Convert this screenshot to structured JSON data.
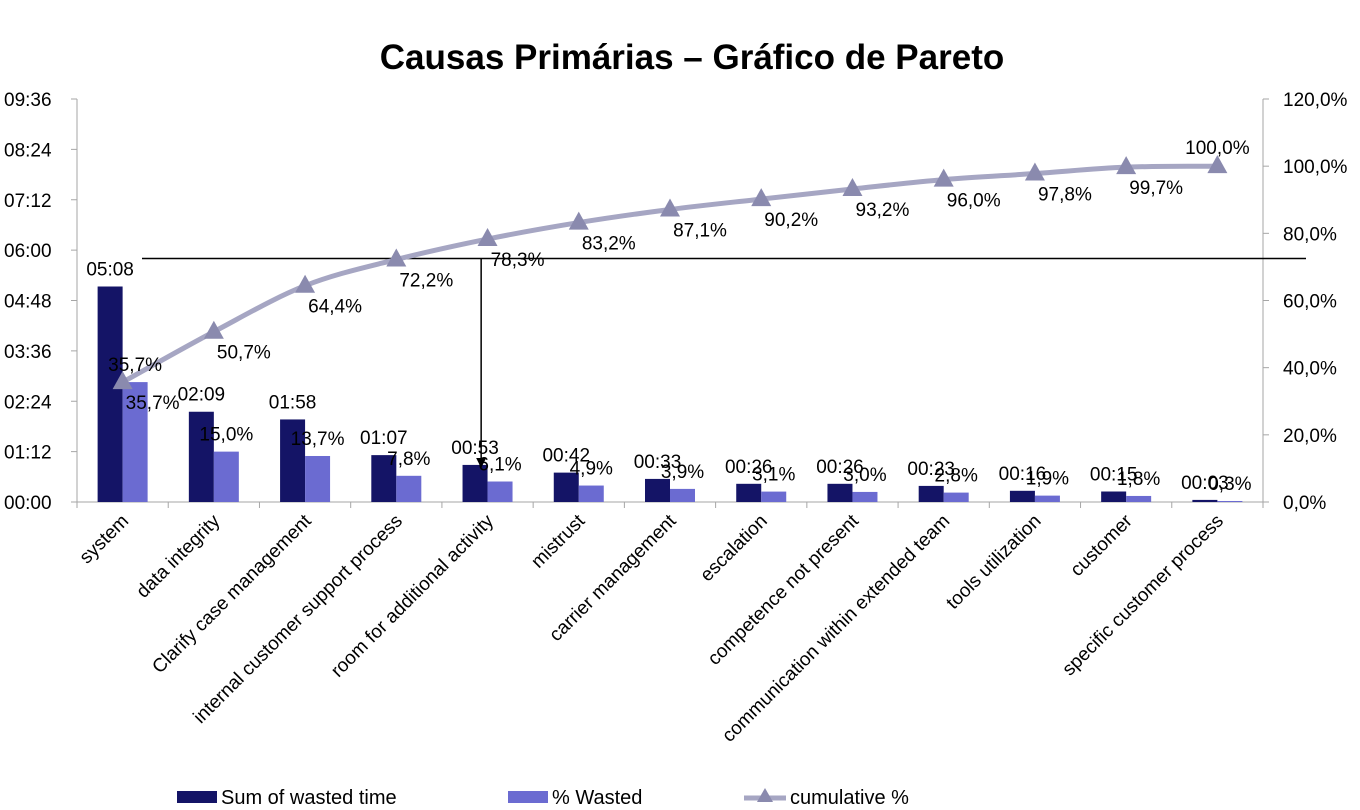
{
  "chart_data": {
    "type": "bar",
    "title": "Causas Primárias – Gráfico de Pareto",
    "categories": [
      "system",
      "data integrity",
      "Clarify case management",
      "internal customer support process",
      "room for additional activity",
      "mistrust",
      "carrier management",
      "escalation",
      "competence not present",
      "communication within extended team",
      "tools utilization",
      "customer",
      "specific customer process"
    ],
    "series": [
      {
        "name": "Sum of wasted time",
        "type": "bar",
        "axis": "left",
        "color": "#141466",
        "values_minutes": [
          308,
          129,
          118,
          67,
          53,
          42,
          33,
          26,
          26,
          23,
          16,
          15,
          3
        ],
        "labels": [
          "05:08",
          "02:09",
          "01:58",
          "01:07",
          "00:53",
          "00:42",
          "00:33",
          "00:26",
          "00:26",
          "00:23",
          "00:16",
          "00:15",
          "00:03"
        ]
      },
      {
        "name": "% Wasted",
        "type": "bar",
        "axis": "right",
        "color": "#6b6bd1",
        "values": [
          35.7,
          15.0,
          13.7,
          7.8,
          6.1,
          4.9,
          3.9,
          3.1,
          3.0,
          2.8,
          1.9,
          1.8,
          0.3
        ],
        "labels": [
          "35,7%",
          "15,0%",
          "13,7%",
          "7,8%",
          "6,1%",
          "4,9%",
          "3,9%",
          "3,1%",
          "3,0%",
          "2,8%",
          "1,9%",
          "1,8%",
          "0,3%"
        ]
      },
      {
        "name": "cumulative %",
        "type": "line",
        "axis": "right",
        "color": "#a6a6c3",
        "marker_color": "#8a8aae",
        "values": [
          35.7,
          50.7,
          64.4,
          72.2,
          78.3,
          83.2,
          87.1,
          90.2,
          93.2,
          96.0,
          97.8,
          99.7,
          100.0
        ],
        "labels": [
          "35,7%",
          "50,7%",
          "64,4%",
          "72,2%",
          "78,3%",
          "83,2%",
          "87,1%",
          "90,2%",
          "93,2%",
          "96,0%",
          "97,8%",
          "99,7%",
          "100,0%"
        ]
      }
    ],
    "y_left": {
      "ylim_minutes": [
        0,
        576
      ],
      "ticks_minutes": [
        0,
        72,
        144,
        216,
        288,
        360,
        432,
        504,
        576
      ],
      "tick_labels": [
        "00:00",
        "01:12",
        "02:24",
        "03:36",
        "04:48",
        "06:00",
        "07:12",
        "08:24",
        "09:36"
      ]
    },
    "y_right": {
      "ylim": [
        0,
        120
      ],
      "ticks": [
        0,
        20,
        40,
        60,
        80,
        100,
        120
      ],
      "tick_labels": [
        "0,0%",
        "20,0%",
        "40,0%",
        "60,0%",
        "80,0%",
        "100,0%",
        "120,0%"
      ]
    },
    "reference_line_percent": 72.2,
    "reference_drop_category": "room for additional activity",
    "grid": false,
    "legend_position": "bottom"
  }
}
